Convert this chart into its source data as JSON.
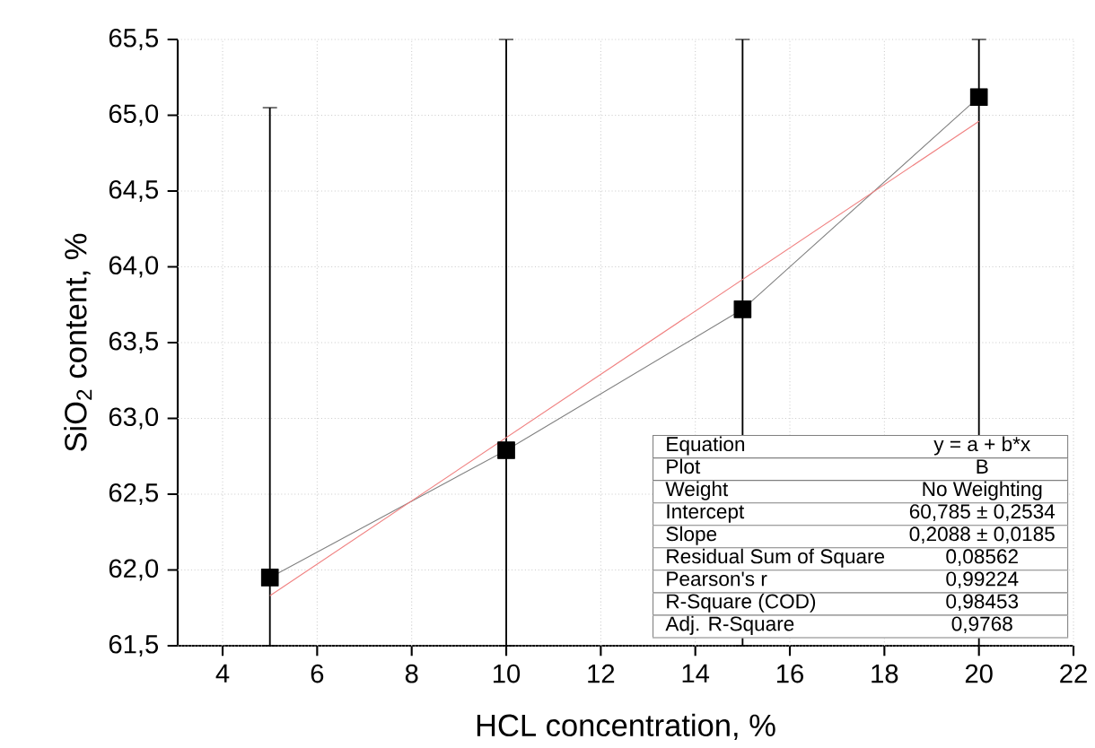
{
  "chart_data": {
    "type": "line",
    "xlabel": "HCL concentration, %",
    "ylabel": "SiO$_{2}$ content, %",
    "xlim": [
      3.05,
      22
    ],
    "xticks": [
      4,
      6,
      8,
      10,
      12,
      14,
      16,
      18,
      20,
      22
    ],
    "ylim": [
      61.5,
      65.5
    ],
    "yticks": [
      {
        "value": 61.5,
        "label": "61,5"
      },
      {
        "value": 62.0,
        "label": "62,0"
      },
      {
        "value": 62.5,
        "label": "62,5"
      },
      {
        "value": 63.0,
        "label": "63,0"
      },
      {
        "value": 63.5,
        "label": "63,5"
      },
      {
        "value": 64.0,
        "label": "64,0"
      },
      {
        "value": 64.5,
        "label": "64,5"
      },
      {
        "value": 65.0,
        "label": "65,0"
      },
      {
        "value": 65.5,
        "label": "65,5"
      }
    ],
    "grid": true,
    "marker": "square",
    "line_style": "solid",
    "series": [
      {
        "color": "#000000",
        "x": [
          5,
          10,
          15,
          20
        ],
        "values": [
          61.95,
          62.79,
          63.72,
          65.12
        ],
        "errors": [
          [
            61.5,
            65.05
          ],
          [
            61.5,
            65.5
          ],
          [
            61.5,
            65.5
          ],
          [
            61.5,
            65.5
          ]
        ]
      },
      {
        "type": "line",
        "color": "#f08080",
        "marker": "none",
        "x": [
          5,
          20
        ],
        "values": [
          61.83,
          64.96
        ]
      }
    ],
    "annotations": [
      "Equation",
      "y = a + b*x",
      "Plot",
      "B",
      "Weight",
      "No Weighting",
      "Intercept",
      "60,785 ± 0,2534",
      "Slope",
      "0,2088 ± 0,0185",
      "Residual Sum of Square",
      "0,08562",
      "Pearson's r",
      "0,99224",
      "R-Square (COD)",
      "0,98453",
      "Adj. R-Square",
      "0,9768"
    ]
  }
}
